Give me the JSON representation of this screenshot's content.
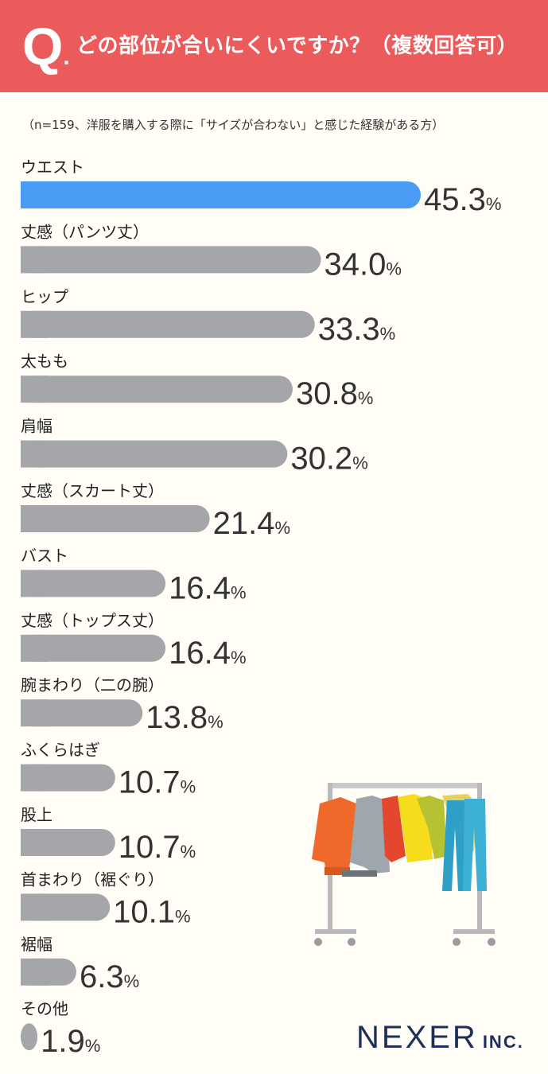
{
  "header": {
    "q_letter": "Q",
    "q_dot": ".",
    "question": "どの部位が合いにくいですか？（複数回答可）"
  },
  "note": "（n=159、洋服を購入する際に「サイズが合わない」と感じた経験がある方）",
  "brand": {
    "name": "NEXER",
    "suffix": "INC."
  },
  "colors": {
    "highlight": "#4a9bf4",
    "bar": "#a5a6aa",
    "header": "#ec5b5b",
    "brand": "#1d2f5a"
  },
  "chart_data": {
    "type": "bar",
    "orientation": "horizontal",
    "unit": "%",
    "categories": [
      "ウエスト",
      "丈感（パンツ丈）",
      "ヒップ",
      "太もも",
      "肩幅",
      "丈感（スカート丈）",
      "バスト",
      "丈感（トップス丈）",
      "腕まわり（二の腕）",
      "ふくらはぎ",
      "股上",
      "首まわり（裾ぐり）",
      "裾幅",
      "その他"
    ],
    "values": [
      45.3,
      34.0,
      33.3,
      30.8,
      30.2,
      21.4,
      16.4,
      16.4,
      13.8,
      10.7,
      10.7,
      10.1,
      6.3,
      1.9
    ],
    "value_labels": [
      "45.3",
      "34.0",
      "33.3",
      "30.8",
      "30.2",
      "21.4",
      "16.4",
      "16.4",
      "13.8",
      "10.7",
      "10.7",
      "10.1",
      "6.3",
      "1.9"
    ],
    "highlight_index": 0
  }
}
